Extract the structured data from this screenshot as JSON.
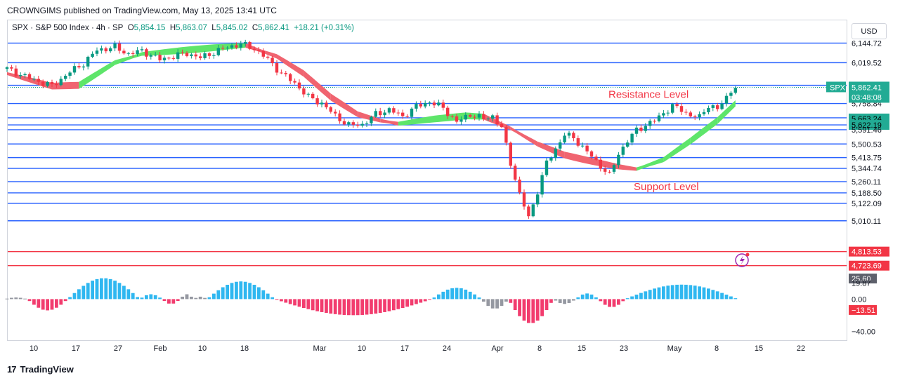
{
  "publisher": "CROWNGIMS published on TradingView.com, May 13, 2025 13:41 UTC",
  "legend": {
    "symbol": "SPX · S&P 500 Index · 4h · SP",
    "open_label": "O",
    "open": "5,854.15",
    "high_label": "H",
    "high": "5,863.07",
    "low_label": "L",
    "low": "5,845.02",
    "close_label": "C",
    "close": "5,862.41",
    "change": "+18.21 (+0.31%)"
  },
  "currency_button": "USD",
  "brand": "TradingView",
  "colors": {
    "level_line": "#2962ff",
    "red_level": "#f23645",
    "bull": "#089981",
    "bear": "#f23645",
    "ribbon_up": "#5ee56a",
    "ribbon_down": "#f06470",
    "hist_pos": "#2fb7f0",
    "hist_neg": "#f23c6e",
    "hist_neutral": "#9598a1"
  },
  "chart_data": [
    {
      "type": "candlestick",
      "symbol": "SPX",
      "ylim": [
        4700,
        6160
      ],
      "x_ticks": [
        "10",
        "17",
        "27",
        "Feb",
        "10",
        "18",
        "Mar",
        "10",
        "17",
        "24",
        "Apr",
        "8",
        "15",
        "23",
        "May",
        "8",
        "15",
        "22"
      ],
      "horizontal_levels": [
        6144.72,
        6019.52,
        5875.03,
        5862.41,
        5758.84,
        5667.48,
        5622.19,
        5591.46,
        5500.53,
        5413.75,
        5344.74,
        5260.11,
        5188.5,
        5122.09,
        5010.11
      ],
      "red_levels": [
        4813.53,
        4723.69
      ],
      "price_labels": [
        {
          "text": "6,144.72",
          "value": 6144.72,
          "style": "plain"
        },
        {
          "text": "6,019.52",
          "value": 6019.52,
          "style": "plain"
        },
        {
          "text": "5,875.03",
          "value": 5875.03,
          "style": "plain"
        },
        {
          "text": "5,758.84",
          "value": 5758.84,
          "style": "plain"
        },
        {
          "text": "5,667.48",
          "value": 5667.48,
          "style": "plain"
        },
        {
          "text": "5,663.24",
          "value": 5663.24,
          "style": "green"
        },
        {
          "text": "5,622.19",
          "value": 5622.19,
          "style": "green"
        },
        {
          "text": "5,591.46",
          "value": 5591.46,
          "style": "plain"
        },
        {
          "text": "5,500.53",
          "value": 5500.53,
          "style": "plain"
        },
        {
          "text": "5,413.75",
          "value": 5413.75,
          "style": "plain"
        },
        {
          "text": "5,344.74",
          "value": 5344.74,
          "style": "plain"
        },
        {
          "text": "5,260.11",
          "value": 5260.11,
          "style": "plain"
        },
        {
          "text": "5,188.50",
          "value": 5188.5,
          "style": "plain"
        },
        {
          "text": "5,122.09",
          "value": 5122.09,
          "style": "plain"
        },
        {
          "text": "5,010.11",
          "value": 5010.11,
          "style": "plain"
        },
        {
          "text": "4,813.53",
          "value": 4813.53,
          "style": "red"
        },
        {
          "text": "4,723.69",
          "value": 4723.69,
          "style": "red"
        }
      ],
      "last_price": {
        "symbol_tag": "SPX",
        "price": "5,862.41",
        "countdown": "03:48:08",
        "value": 5862.41
      },
      "annotations": [
        {
          "text": "Resistance Level",
          "date": "Apr 17",
          "value": 5795
        },
        {
          "text": "Support Level",
          "date": "Apr 23",
          "value": 5205
        }
      ],
      "close_anchors": [
        [
          0,
          5980
        ],
        [
          5,
          5920
        ],
        [
          10,
          5870
        ],
        [
          14,
          5960
        ],
        [
          17,
          6015
        ],
        [
          20,
          6100
        ],
        [
          24,
          6118
        ],
        [
          27,
          6075
        ],
        [
          30,
          6095
        ],
        [
          34,
          6040
        ],
        [
          37,
          6060
        ],
        [
          40,
          6080
        ],
        [
          43,
          6050
        ],
        [
          46,
          6085
        ],
        [
          49,
          6120
        ],
        [
          52,
          6138
        ],
        [
          55,
          6110
        ],
        [
          58,
          6040
        ],
        [
          61,
          5950
        ],
        [
          64,
          5890
        ],
        [
          67,
          5800
        ],
        [
          70,
          5760
        ],
        [
          73,
          5680
        ],
        [
          76,
          5620
        ],
        [
          79,
          5625
        ],
        [
          82,
          5690
        ],
        [
          85,
          5720
        ],
        [
          88,
          5675
        ],
        [
          91,
          5740
        ],
        [
          94,
          5770
        ],
        [
          97,
          5730
        ],
        [
          100,
          5640
        ],
        [
          103,
          5690
        ],
        [
          106,
          5660
        ],
        [
          108,
          5680
        ],
        [
          110,
          5600
        ],
        [
          112,
          5380
        ],
        [
          114,
          5180
        ],
        [
          116,
          5030
        ],
        [
          118,
          5200
        ],
        [
          120,
          5380
        ],
        [
          122,
          5470
        ],
        [
          124,
          5560
        ],
        [
          126,
          5540
        ],
        [
          128,
          5480
        ],
        [
          130,
          5420
        ],
        [
          132,
          5360
        ],
        [
          134,
          5300
        ],
        [
          136,
          5440
        ],
        [
          138,
          5520
        ],
        [
          140,
          5590
        ],
        [
          142,
          5620
        ],
        [
          144,
          5650
        ],
        [
          146,
          5700
        ],
        [
          148,
          5740
        ],
        [
          150,
          5720
        ],
        [
          152,
          5680
        ],
        [
          154,
          5670
        ],
        [
          156,
          5750
        ],
        [
          158,
          5720
        ],
        [
          160,
          5800
        ],
        [
          161,
          5845
        ],
        [
          162,
          5862
        ]
      ],
      "ribbon": [
        [
          0,
          5950,
          "down"
        ],
        [
          10,
          5870,
          "down"
        ],
        [
          16,
          5875,
          "up"
        ],
        [
          24,
          6020,
          "up"
        ],
        [
          30,
          6075,
          "up"
        ],
        [
          40,
          6100,
          "up"
        ],
        [
          48,
          6120,
          "up"
        ],
        [
          53,
          6130,
          "down"
        ],
        [
          60,
          6060,
          "down"
        ],
        [
          66,
          5950,
          "down"
        ],
        [
          72,
          5800,
          "down"
        ],
        [
          78,
          5690,
          "down"
        ],
        [
          83,
          5650,
          "down"
        ],
        [
          87,
          5630,
          "up"
        ],
        [
          95,
          5660,
          "up"
        ],
        [
          102,
          5680,
          "up"
        ],
        [
          106,
          5675,
          "down"
        ],
        [
          112,
          5600,
          "down"
        ],
        [
          118,
          5500,
          "down"
        ],
        [
          124,
          5430,
          "down"
        ],
        [
          130,
          5390,
          "down"
        ],
        [
          136,
          5355,
          "down"
        ],
        [
          140,
          5340,
          "up"
        ],
        [
          146,
          5400,
          "up"
        ],
        [
          152,
          5520,
          "up"
        ],
        [
          158,
          5650,
          "up"
        ],
        [
          162,
          5760,
          "up"
        ]
      ]
    },
    {
      "type": "bar",
      "name": "oscillator",
      "ylim": [
        -45,
        30
      ],
      "y_ticks": [
        25.6,
        19.87,
        0.0,
        -13.51,
        -40.0
      ],
      "tick_labels": [
        {
          "text": "25.60",
          "value": 25.6,
          "style": "gray"
        },
        {
          "text": "19.87",
          "value": 19.87,
          "style": "plain"
        },
        {
          "text": "0.00",
          "value": 0.0,
          "style": "plain"
        },
        {
          "text": "−13.51",
          "value": -13.51,
          "style": "red"
        },
        {
          "text": "−40.00",
          "value": -40.0,
          "style": "plain"
        }
      ],
      "segments": [
        {
          "from": 0,
          "to": 4,
          "peak": 2,
          "state": "neutral"
        },
        {
          "from": 5,
          "to": 13,
          "peak": -14,
          "state": "neg"
        },
        {
          "from": 14,
          "to": 29,
          "peak": 26,
          "state": "pos"
        },
        {
          "from": 30,
          "to": 34,
          "peak": 6,
          "state": "pos"
        },
        {
          "from": 35,
          "to": 38,
          "peak": -6,
          "state": "neg"
        },
        {
          "from": 39,
          "to": 41,
          "peak": 6,
          "state": "neutral"
        },
        {
          "from": 42,
          "to": 44,
          "peak": 3,
          "state": "neutral"
        },
        {
          "from": 45,
          "to": 59,
          "peak": 22,
          "state": "pos"
        },
        {
          "from": 60,
          "to": 94,
          "peak": -20,
          "state": "neg"
        },
        {
          "from": 95,
          "to": 105,
          "peak": 14,
          "state": "pos"
        },
        {
          "from": 106,
          "to": 111,
          "peak": -12,
          "state": "neutral"
        },
        {
          "from": 112,
          "to": 121,
          "peak": -30,
          "state": "neg"
        },
        {
          "from": 122,
          "to": 126,
          "peak": -6,
          "state": "neutral"
        },
        {
          "from": 127,
          "to": 131,
          "peak": 7,
          "state": "pos"
        },
        {
          "from": 132,
          "to": 137,
          "peak": -10,
          "state": "neg"
        },
        {
          "from": 138,
          "to": 162,
          "peak": 18,
          "state": "pos"
        }
      ]
    }
  ]
}
